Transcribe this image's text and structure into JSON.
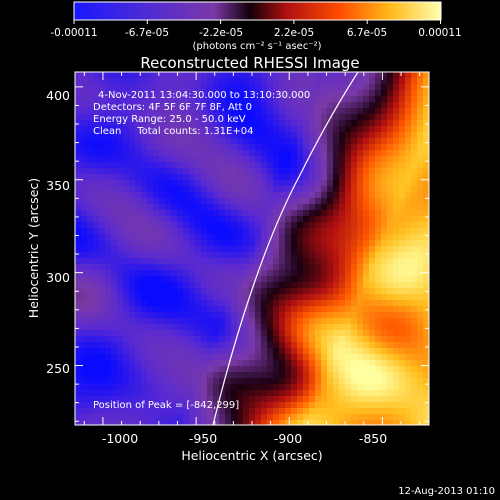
{
  "colorbar": {
    "ticks": [
      "-0.00011",
      "-6.7e-05",
      "-2.2e-05",
      "2.2e-05",
      "6.7e-05",
      "0.00011"
    ],
    "units": "(photons cm⁻² s⁻¹ asec⁻²)"
  },
  "title": "Reconstructed RHESSI Image",
  "info": {
    "time_range": "4-Nov-2011 13:04:30.000 to 13:10:30.000",
    "detectors": "Detectors: 4F 5F 6F 7F 8F, Att 0",
    "energy": "Energy Range: 25.0 - 50.0 keV",
    "clean": "Clean     Total counts: 1.31E+04"
  },
  "peak_label": "Position of Peak = [-842,299]",
  "axes": {
    "x_label": "Heliocentric X (arcsec)",
    "y_label": "Heliocentric Y (arcsec)",
    "x_ticks": [
      "-1000",
      "-950",
      "-900",
      "-850"
    ],
    "y_ticks": [
      "400",
      "350",
      "300",
      "250"
    ],
    "x_range": [
      -1015,
      -825
    ],
    "y_range": [
      218,
      408
    ]
  },
  "footer_date": "12-Aug-2013 01:10",
  "colormap": [
    "#0a0aff",
    "#5a2ad0",
    "#7a3aa8",
    "#1a0010",
    "#b21010",
    "#ff5a00",
    "#ffc020",
    "#ffffa0"
  ]
}
